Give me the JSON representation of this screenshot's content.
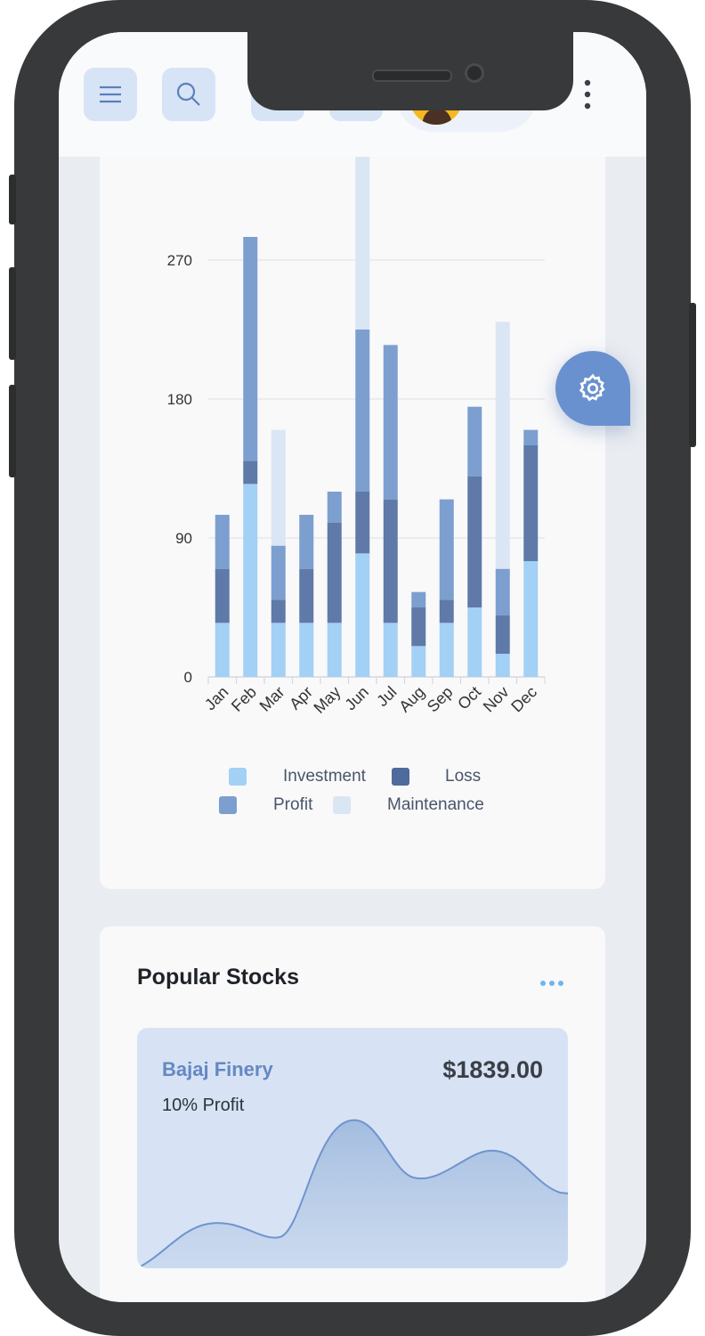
{
  "header": {
    "icons": [
      "menu-icon",
      "search-icon",
      "bell-icon",
      "logout-icon",
      "avatar",
      "gear-icon",
      "more-vertical-icon"
    ]
  },
  "chart_data": {
    "type": "bar",
    "stacked": true,
    "categories": [
      "Jan",
      "Feb",
      "Mar",
      "Apr",
      "May",
      "Jun",
      "Jul",
      "Aug",
      "Sep",
      "Oct",
      "Nov",
      "Dec"
    ],
    "series": [
      {
        "name": "Investment",
        "color": "#a3d0f5",
        "values": [
          35,
          125,
          35,
          35,
          35,
          80,
          35,
          20,
          35,
          45,
          15,
          75
        ]
      },
      {
        "name": "Loss",
        "color": "#5f7aa8",
        "values": [
          35,
          15,
          15,
          35,
          65,
          40,
          80,
          25,
          15,
          85,
          25,
          75
        ]
      },
      {
        "name": "Profit",
        "color": "#7c9fd0",
        "values": [
          35,
          145,
          35,
          35,
          20,
          105,
          100,
          10,
          65,
          45,
          30,
          10
        ]
      },
      {
        "name": "Maintenance",
        "color": "#dbe6f4",
        "values": [
          0,
          0,
          75,
          0,
          0,
          115,
          0,
          0,
          0,
          0,
          160,
          0
        ]
      }
    ],
    "yticks": [
      0,
      90,
      180,
      270
    ],
    "ylim": [
      0,
      340
    ],
    "legend": [
      "Investment",
      "Loss",
      "Profit",
      "Maintenance"
    ],
    "legend_position": "bottom",
    "grid": true
  },
  "popular_stocks": {
    "title": "Popular Stocks",
    "more_icon": "more-horizontal-icon",
    "items": [
      {
        "name": "Bajaj Finery",
        "price": "$1839.00",
        "change": "10% Profit"
      }
    ]
  },
  "colors": {
    "accent": "#6a91cf",
    "icon_bg": "#d7e4f6",
    "stock_card_bg": "#d7e3f4"
  }
}
